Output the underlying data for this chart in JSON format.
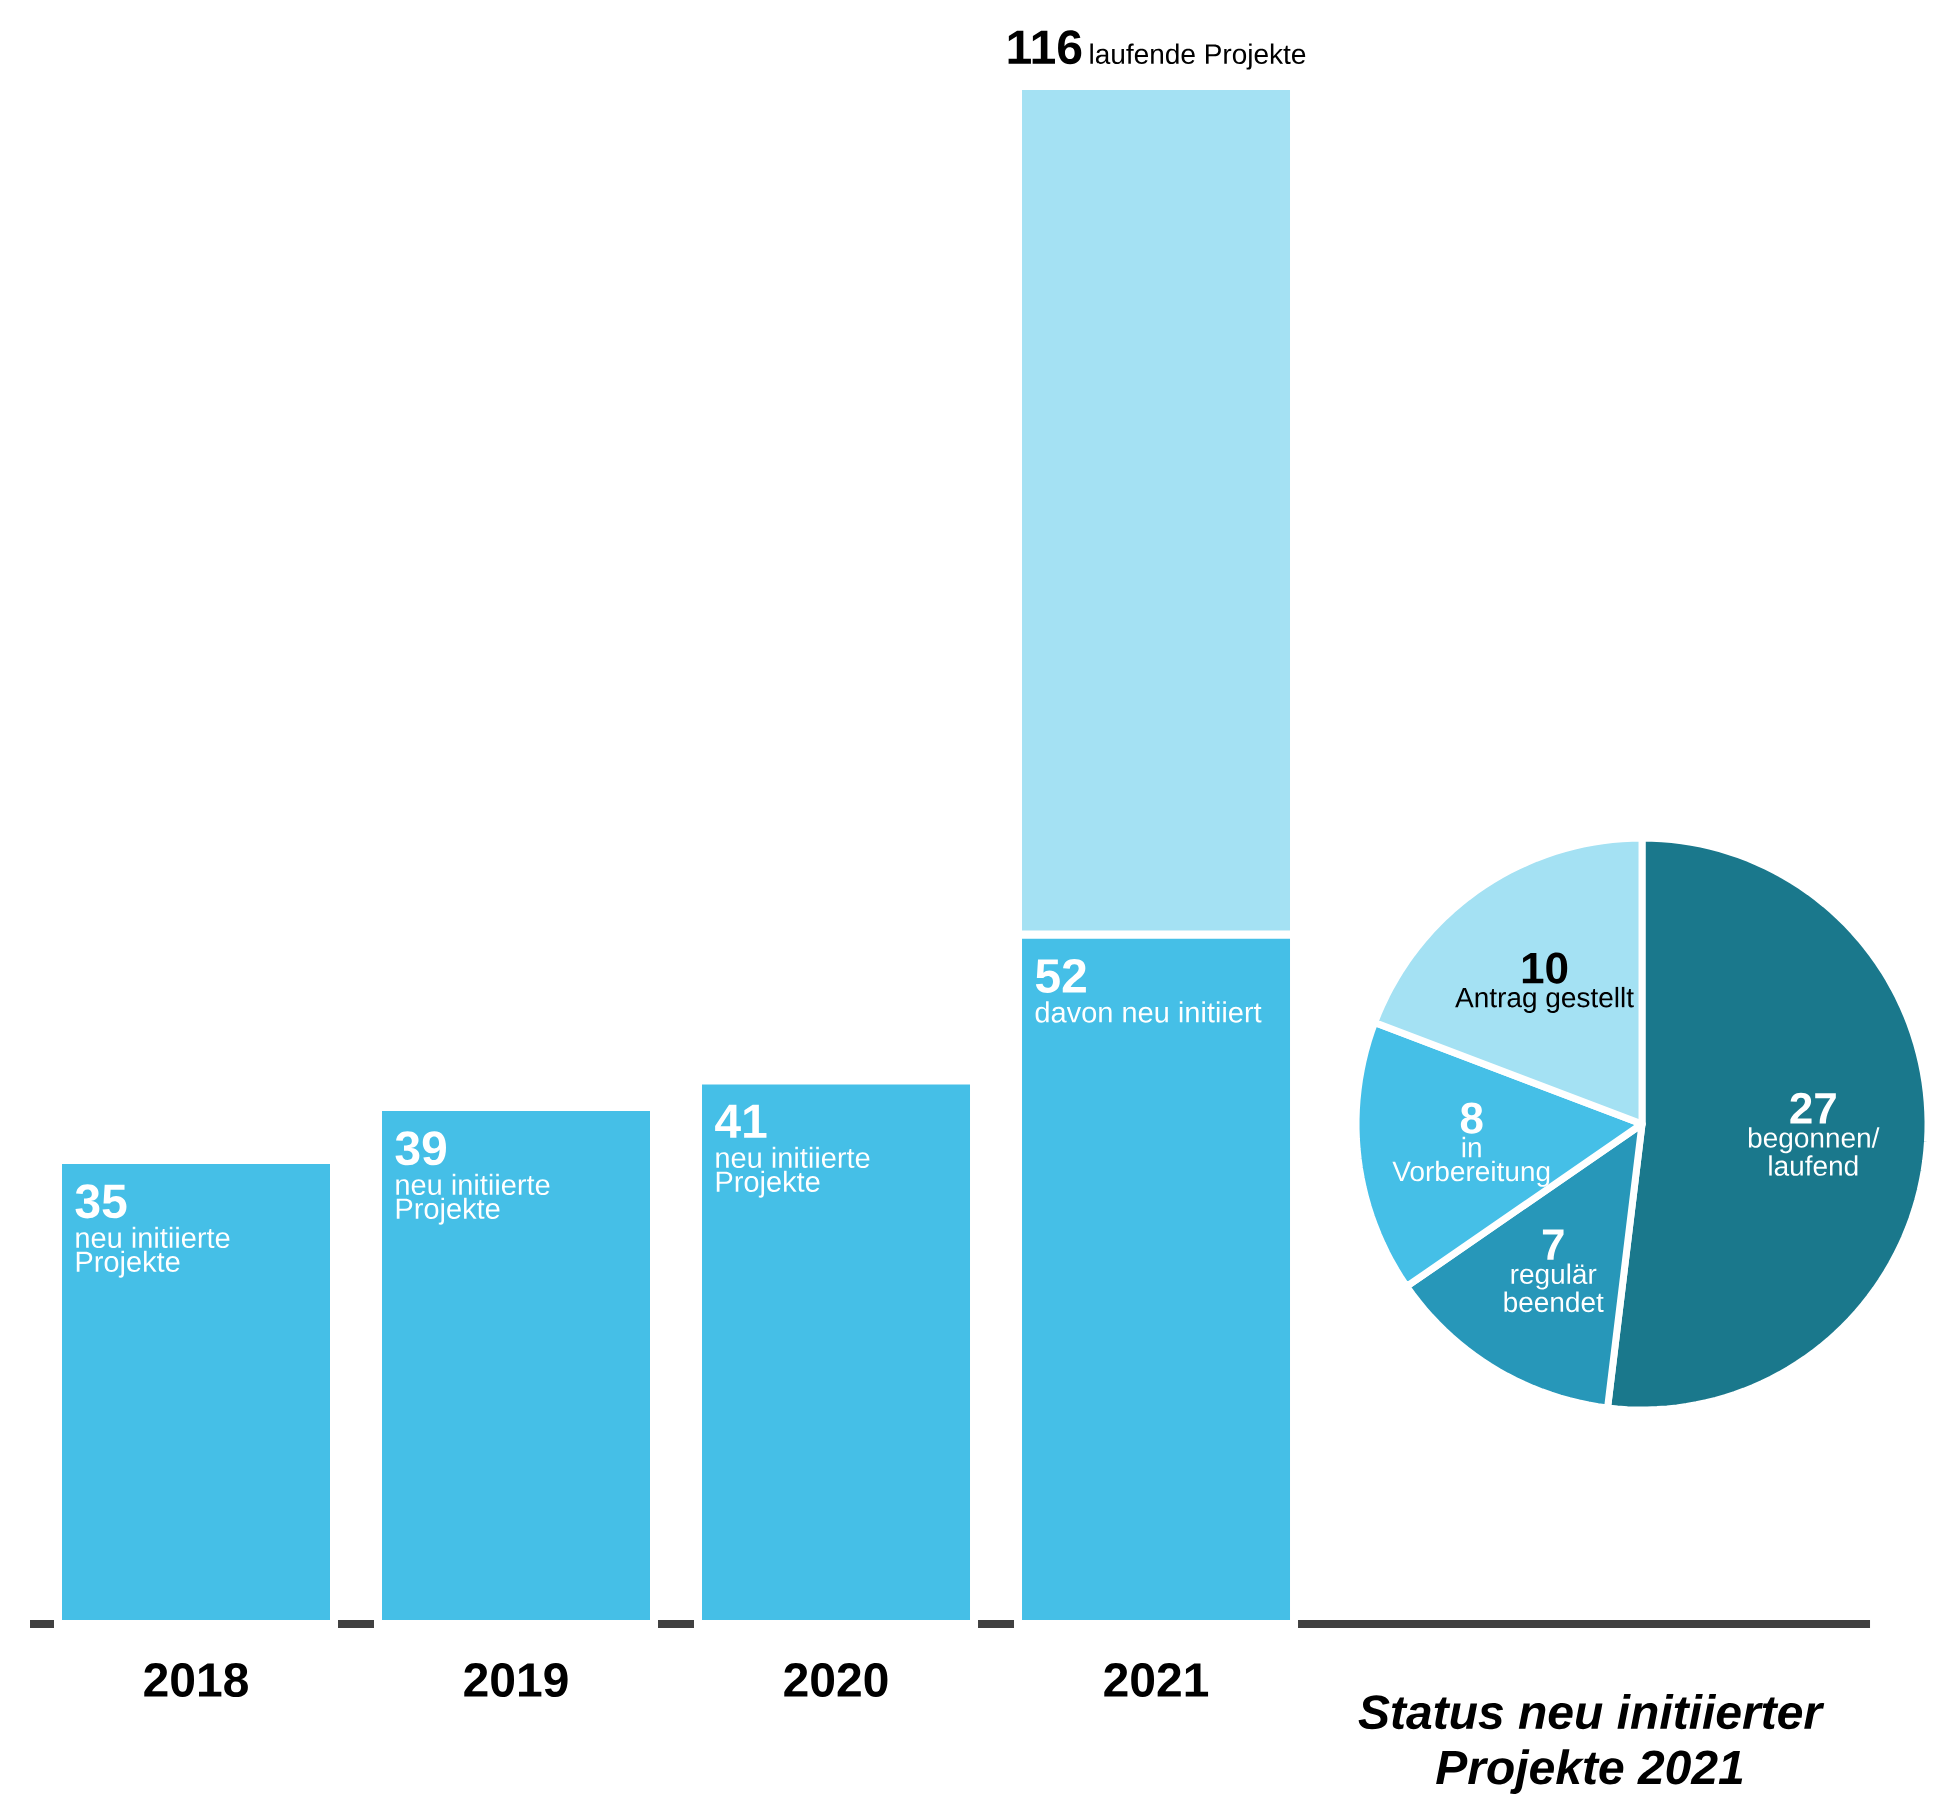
{
  "chart_data": [
    {
      "type": "bar",
      "stacked": true,
      "categories": [
        "2018",
        "2019",
        "2020",
        "2021"
      ],
      "series": [
        {
          "color": "#45bfe7",
          "values": [
            35,
            39,
            41,
            52
          ],
          "value_labels": [
            "35",
            "39",
            "41",
            "52"
          ]
        },
        {
          "color": "#a4e1f3",
          "values": [
            null,
            null,
            null,
            64
          ]
        }
      ],
      "totals": [
        null,
        null,
        null,
        "116"
      ],
      "annotations": [
        "neu initiierte Projekte",
        "neu initiierte Projekte",
        "neu initiierte Projekte",
        "davon neu initiiert",
        "laufende Projekte"
      ]
    },
    {
      "type": "pie",
      "title": "Status neu initiierter Projekte 2021",
      "categories": [
        "begonnen/ laufend",
        "regulär beendet",
        "in Vorbereitung",
        "Antrag gestellt"
      ],
      "values": [
        27,
        7,
        8,
        10
      ],
      "colors": [
        "#1a788c",
        "#2797b9",
        "#45bfe7",
        "#a4e1f3"
      ],
      "data_labels": true
    }
  ]
}
